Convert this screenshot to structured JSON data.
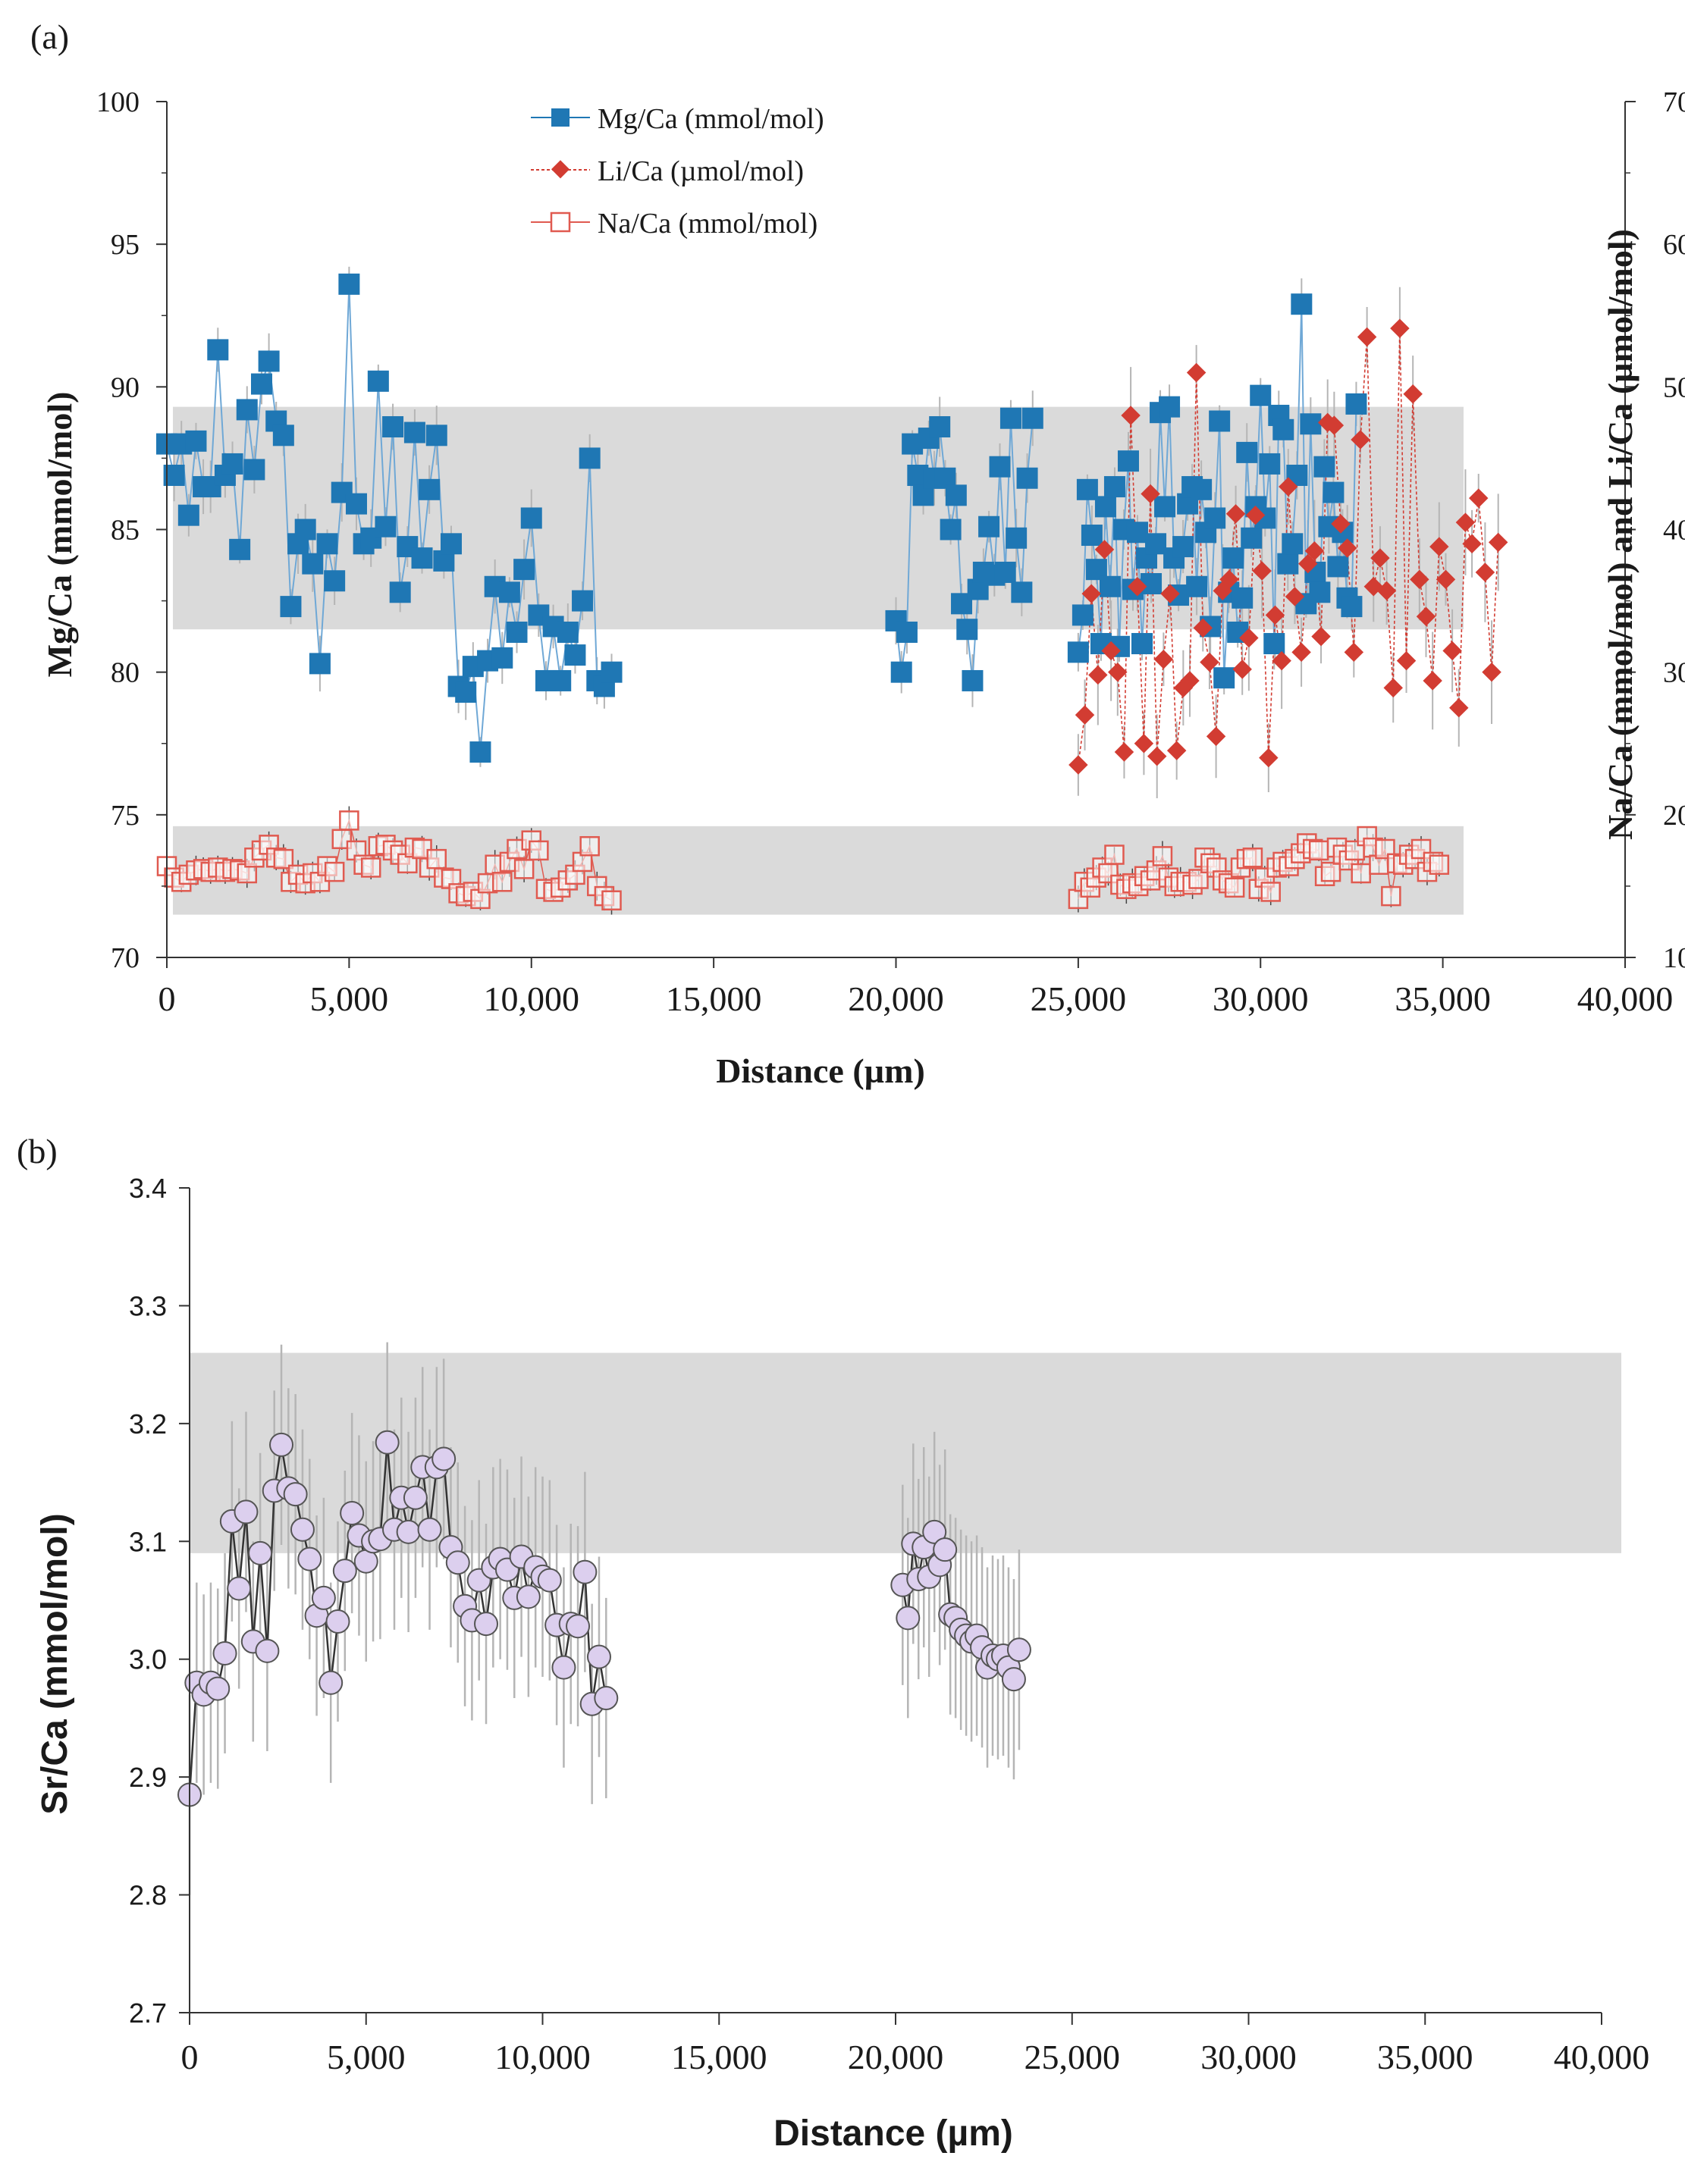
{
  "colors": {
    "mg": "#1f77b4",
    "li": "#d23c32",
    "na": "#e05a50",
    "sr_fill": "#dccfee",
    "sr_stroke": "#555555",
    "band": "#d6d6d6",
    "err": "#b5b5b5"
  },
  "chart_data": [
    {
      "panel": "(a)",
      "type": "scatter",
      "title": "",
      "xlabel": "Distance (µm)",
      "ylabel_left": "Mg/Ca (mmol/mol)",
      "ylabel_right": "Na/Ca (mmol/mol) and Li/Ca (µmol/mol)",
      "xlim": [
        0,
        40000
      ],
      "ylim_left": [
        70,
        100
      ],
      "ylim_right": [
        10,
        70
      ],
      "xticks": [
        "0",
        "5,000",
        "10,000",
        "15,000",
        "20,000",
        "25,000",
        "30,000",
        "35,000",
        "40,000"
      ],
      "yticks_left": [
        "70",
        "75",
        "80",
        "85",
        "90",
        "95",
        "100"
      ],
      "yticks_right": [
        "10",
        "20",
        "30",
        "40",
        "50",
        "60",
        "70"
      ],
      "legend": [
        "Mg/Ca (mmol/mol)",
        "Li/Ca (µmol/mol)",
        "Na/Ca (mmol/mol)"
      ],
      "legend_position": "top-center",
      "bands_left_axis": [
        [
          81.5,
          89.3
        ],
        [
          71.5,
          74.6
        ]
      ],
      "series": [
        {
          "name": "Mg/Ca (mmol/mol)",
          "axis": "left",
          "marker": "filled-square",
          "segments": [
            {
              "x0": 0,
              "dx": 200,
              "values": [
                88.0,
                86.9,
                88.0,
                85.5,
                88.1,
                86.5,
                86.5,
                91.3,
                86.9,
                87.3,
                84.3,
                89.2,
                87.1,
                90.1,
                90.9,
                88.8,
                88.3,
                82.3,
                84.5,
                85.0,
                83.8,
                80.3,
                84.5,
                83.2,
                86.3,
                93.6,
                85.9,
                84.5,
                84.7,
                90.2,
                85.1,
                88.6,
                82.8,
                84.4,
                88.4,
                84.0,
                86.4,
                88.3,
                83.9,
                84.5,
                79.5,
                79.3,
                80.2,
                77.2,
                80.4,
                83.0,
                80.5,
                82.8,
                81.4,
                83.6,
                85.4,
                82.0,
                79.7,
                81.6,
                79.7,
                81.4,
                80.6,
                82.5,
                87.5,
                79.7,
                79.5,
                80.0
              ]
            },
            {
              "x0": 20000,
              "dx": 150,
              "values": [
                81.8,
                80.0,
                81.4,
                88.0,
                86.9,
                86.2,
                88.2,
                86.8,
                88.6,
                86.8,
                85.0,
                86.2,
                82.4,
                81.5,
                79.7,
                82.9,
                83.5,
                85.1,
                83.4,
                87.2,
                83.5,
                88.9,
                84.7,
                82.8,
                86.8,
                88.9
              ]
            },
            {
              "x0": 25000,
              "dx": 125,
              "values": [
                80.7,
                82.0,
                86.4,
                84.8,
                83.6,
                81.0,
                85.8,
                83.0,
                86.5,
                80.9,
                85.0,
                87.4,
                82.9,
                84.9,
                81.0,
                84.0,
                83.1,
                84.5,
                89.1,
                85.8,
                89.3,
                84.0,
                82.7,
                84.4,
                85.9,
                86.5,
                83.0,
                86.4,
                84.9,
                81.6,
                85.4,
                88.8,
                79.8,
                82.8,
                84.0,
                81.4,
                82.6,
                87.7,
                84.7,
                85.8,
                89.7,
                85.4,
                87.3,
                81.0,
                89.0,
                88.5,
                83.8,
                84.5,
                86.9,
                92.9,
                82.4,
                88.7,
                83.5,
                82.8,
                87.2,
                85.1,
                86.3,
                83.7,
                84.9,
                82.6,
                82.3,
                89.4
              ]
            }
          ]
        },
        {
          "name": "Li/Ca (µmol/mol)",
          "axis": "right",
          "marker": "filled-diamond",
          "segments": [
            {
              "x0": 25000,
              "dx": 180,
              "values": [
                23.5,
                27.0,
                35.5,
                29.8,
                38.6,
                31.5,
                30.0,
                24.4,
                48.0,
                36.0,
                25.0,
                42.5,
                24.1,
                30.9,
                35.5,
                24.5,
                28.9,
                29.4,
                51.0,
                33.1,
                30.7,
                25.5,
                35.7,
                36.5,
                41.1,
                30.2,
                32.4,
                41.0,
                37.1,
                24.0,
                34.0,
                30.8,
                43.0,
                35.3,
                31.4,
                37.6,
                38.5,
                32.5,
                47.5,
                47.3,
                40.4,
                38.7,
                31.4,
                46.3,
                53.5,
                36.0,
                38.0,
                35.7,
                28.9,
                54.1,
                30.8,
                49.5,
                36.5,
                33.9,
                29.4,
                38.8,
                36.5,
                31.5,
                27.5,
                40.5,
                39.0,
                42.2,
                37.0,
                30.0,
                39.1
              ]
            }
          ]
        },
        {
          "name": "Na/Ca (mmol/mol)",
          "axis": "right",
          "marker": "open-square",
          "segments": [
            {
              "x0": 0,
              "dx": 200,
              "values": [
                16.4,
                15.6,
                15.3,
                15.8,
                16.1,
                16.2,
                16.0,
                16.3,
                16.0,
                16.2,
                16.1,
                15.9,
                17.0,
                17.5,
                17.9,
                17.0,
                16.9,
                15.3,
                15.8,
                15.2,
                15.9,
                15.3,
                16.4,
                16.0,
                18.3,
                19.6,
                17.5,
                16.5,
                16.3,
                17.8,
                17.9,
                17.5,
                17.2,
                16.6,
                17.7,
                17.6,
                16.3,
                16.9,
                15.6,
                15.5,
                14.5,
                14.3,
                14.6,
                14.1,
                15.2,
                16.5,
                15.3,
                16.7,
                17.6,
                16.2,
                18.2,
                17.5,
                14.8,
                14.6,
                14.9,
                15.4,
                15.8,
                16.7,
                17.8,
                15.0,
                14.3,
                14.0
              ]
            },
            {
              "x0": 25000,
              "dx": 165,
              "values": [
                14.1,
                15.3,
                14.9,
                15.6,
                16.3,
                15.9,
                17.2,
                15.1,
                14.8,
                15.2,
                15.0,
                15.7,
                15.4,
                16.1,
                17.1,
                15.6,
                15.0,
                15.3,
                15.3,
                15.1,
                15.5,
                17.0,
                16.6,
                16.3,
                15.4,
                15.2,
                14.9,
                16.3,
                16.9,
                17.0,
                14.8,
                15.6,
                14.6,
                16.3,
                16.7,
                16.4,
                16.9,
                17.3,
                18.0,
                17.6,
                17.5,
                15.7,
                16.0,
                17.7,
                17.2,
                16.8,
                17.5,
                15.9,
                18.5,
                17.7,
                16.5,
                17.6,
                14.3,
                16.6,
                16.5,
                17.2,
                16.9,
                17.6,
                16.0,
                16.7,
                16.5
              ]
            }
          ]
        }
      ]
    },
    {
      "panel": "(b)",
      "type": "scatter",
      "title": "",
      "xlabel": "Distance (µm)",
      "ylabel": "Sr/Ca (mmol/mol)",
      "xlim": [
        0,
        40000
      ],
      "ylim": [
        2.7,
        3.4
      ],
      "xticks": [
        "0",
        "5,000",
        "10,000",
        "15,000",
        "20,000",
        "25,000",
        "30,000",
        "35,000",
        "40,000"
      ],
      "yticks": [
        "2.7",
        "2.8",
        "2.9",
        "3.0",
        "3.1",
        "3.2",
        "3.3",
        "3.4"
      ],
      "band": [
        3.09,
        3.26
      ],
      "error": 0.085,
      "series": [
        {
          "name": "Sr/Ca (mmol/mol)",
          "marker": "open-circle",
          "segments": [
            {
              "x0": 0,
              "dx": 200,
              "values": [
                2.885,
                2.98,
                2.97,
                2.98,
                2.975,
                3.005,
                3.117,
                3.06,
                3.125,
                3.015,
                3.09,
                3.007,
                3.143,
                3.182,
                3.145,
                3.14,
                3.11,
                3.085,
                3.037,
                3.052,
                2.98,
                3.032,
                3.075,
                3.124,
                3.105,
                3.083,
                3.1,
                3.102,
                3.184,
                3.11,
                3.137,
                3.108,
                3.137,
                3.163,
                3.11,
                3.163,
                3.17,
                3.095,
                3.082,
                3.045,
                3.033,
                3.067,
                3.03,
                3.078,
                3.085,
                3.076,
                3.052,
                3.087,
                3.053,
                3.078,
                3.07,
                3.067,
                3.029,
                2.993,
                3.03,
                3.028,
                3.074,
                2.962,
                3.002,
                2.967
              ]
            },
            {
              "x0": 20200,
              "dx": 150,
              "values": [
                3.063,
                3.035,
                3.098,
                3.068,
                3.095,
                3.07,
                3.108,
                3.08,
                3.093,
                3.038,
                3.035,
                3.025,
                3.02,
                3.015,
                3.02,
                3.01,
                2.993,
                3.003,
                3.0,
                3.003,
                2.993,
                2.983,
                3.008
              ]
            }
          ]
        }
      ]
    }
  ]
}
